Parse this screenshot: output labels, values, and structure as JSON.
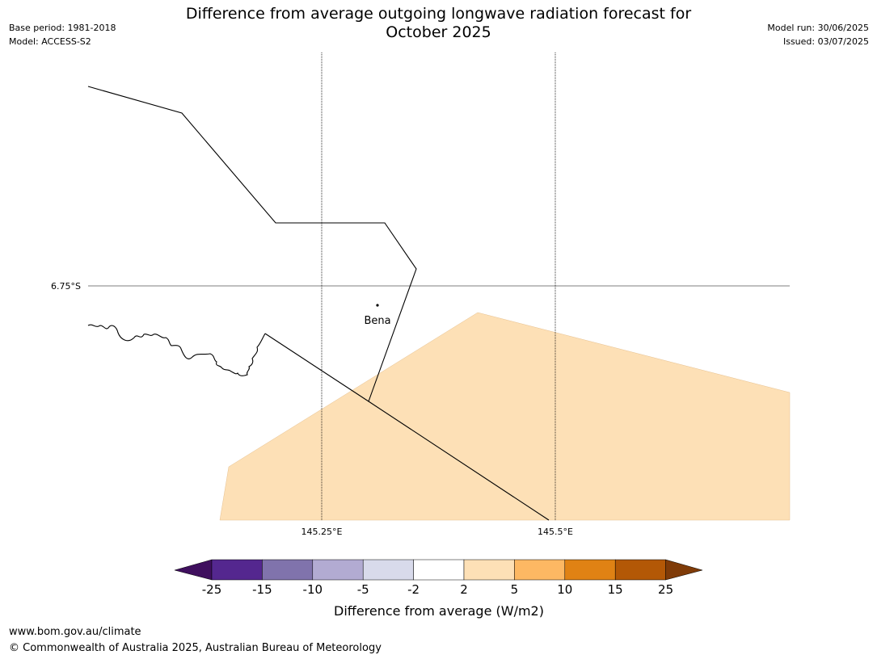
{
  "title": {
    "line1": "Difference from average outgoing longwave radiation forecast for",
    "line2": "October 2025"
  },
  "meta_left": {
    "base_period": "Base period: 1981-2018",
    "model": "Model: ACCESS-S2"
  },
  "meta_right": {
    "model_run": "Model run: 30/06/2025",
    "issued": "Issued: 03/07/2025"
  },
  "map": {
    "lat_label": "6.75°S",
    "lon_labels": [
      "145.25°E",
      "145.5°E"
    ],
    "place": {
      "name": "Bena"
    },
    "shading_class": "2 to 5"
  },
  "colorbar": {
    "label": "Difference from average (W/m2)",
    "ticks": [
      "-25",
      "-15",
      "-10",
      "-5",
      "-2",
      "2",
      "5",
      "10",
      "15",
      "25"
    ],
    "colors": [
      "#3f0f5e",
      "#54278f",
      "#8073ac",
      "#b2abd2",
      "#d8daeb",
      "#ffffff",
      "#fde0b6",
      "#fdb863",
      "#e08214",
      "#b35806",
      "#7f3b08"
    ]
  },
  "footer": {
    "url": "www.bom.gov.au/climate",
    "copyright": "© Commonwealth of Australia 2025, Australian Bureau of Meteorology"
  }
}
